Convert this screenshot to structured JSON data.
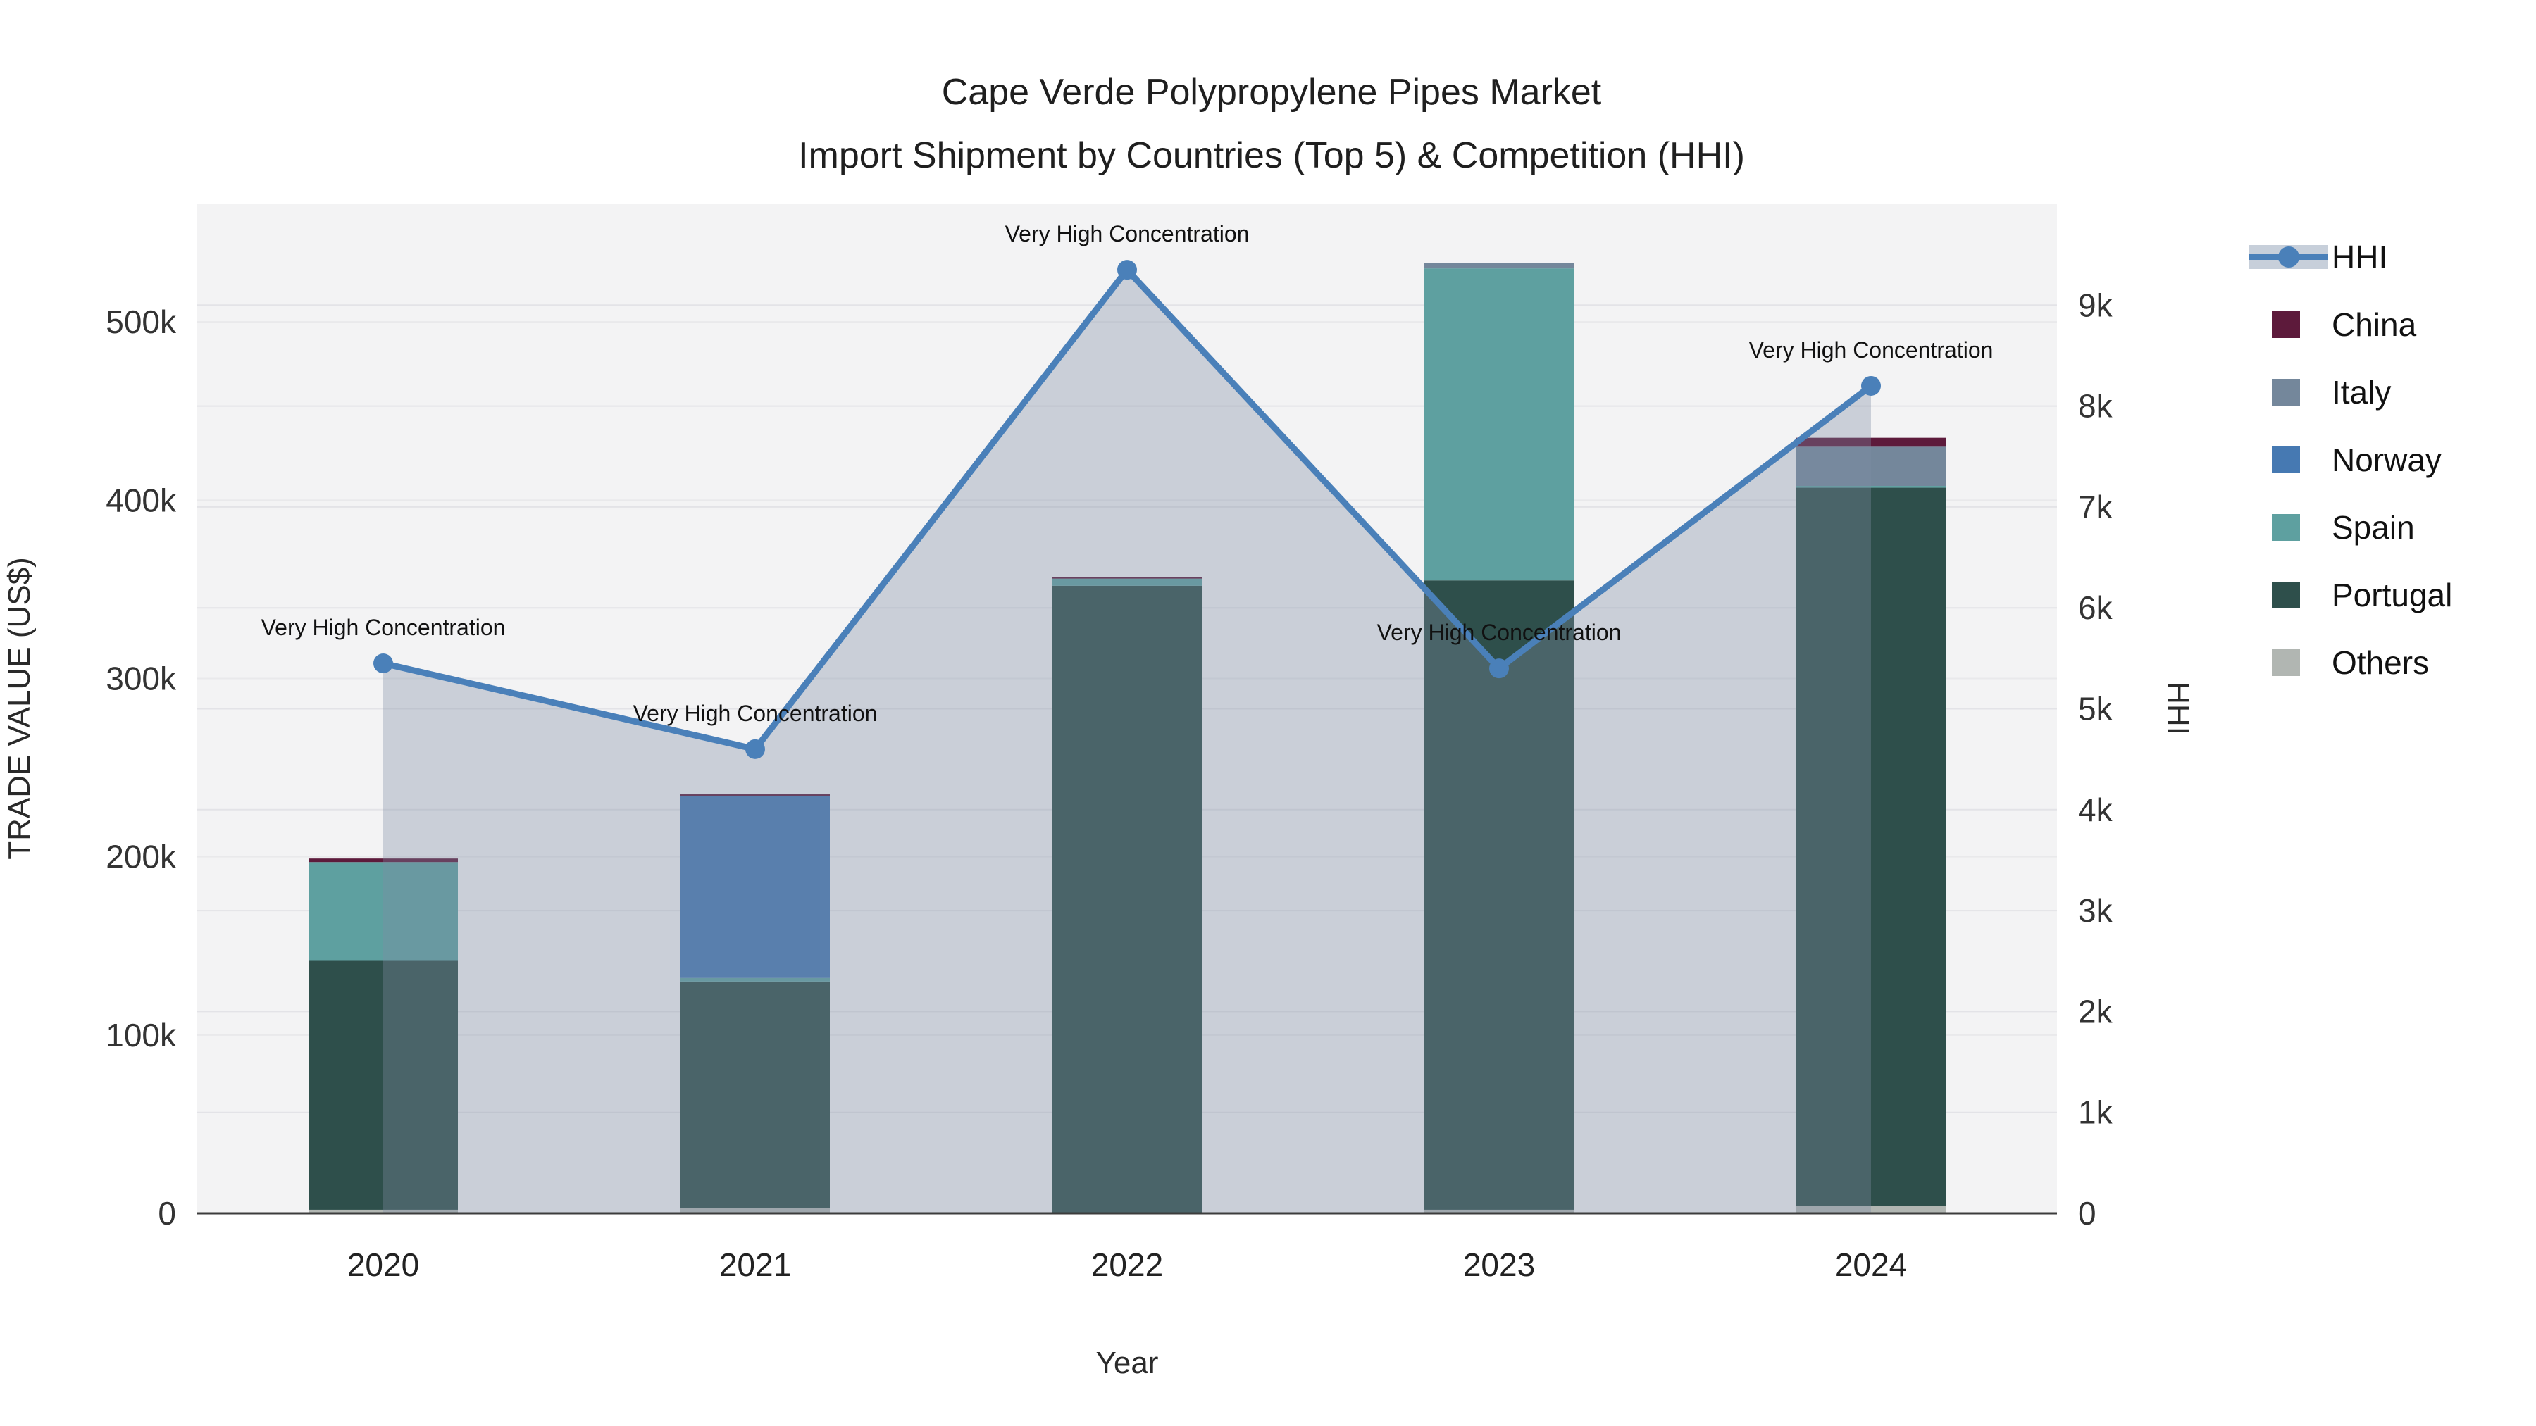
{
  "title": {
    "line1": "Cape Verde Polypropylene Pipes Market",
    "line2": "Import Shipment by Countries (Top 5) & Competition (HHI)"
  },
  "chart_data": {
    "type": "bar",
    "subtype": "stacked bars (left axis) + line with area fill (right axis)",
    "categories": [
      "2020",
      "2021",
      "2022",
      "2023",
      "2024"
    ],
    "xlabel": "Year",
    "ylabel_left": "TRADE VALUE (US$)",
    "ylabel_right": "HHI",
    "ylim_left": [
      0,
      566000
    ],
    "ylim_right": [
      0,
      10000
    ],
    "yticks_left": {
      "values": [
        0,
        100000,
        200000,
        300000,
        400000,
        500000
      ],
      "labels": [
        "0",
        "100k",
        "200k",
        "300k",
        "400k",
        "500k"
      ]
    },
    "yticks_right": {
      "values": [
        0,
        1000,
        2000,
        3000,
        4000,
        5000,
        6000,
        7000,
        8000,
        9000
      ],
      "labels": [
        "0",
        "1k",
        "2k",
        "3k",
        "4k",
        "5k",
        "6k",
        "7k",
        "8k",
        "9k"
      ]
    },
    "bar_series": [
      {
        "name": "Others",
        "color": "#B1B6B2",
        "values": [
          2000,
          3000,
          0,
          2000,
          4000
        ]
      },
      {
        "name": "Portugal",
        "color": "#2E4F4B",
        "values": [
          140000,
          127000,
          352000,
          353000,
          403000
        ]
      },
      {
        "name": "Spain",
        "color": "#5EA0A0",
        "values": [
          55000,
          2000,
          4000,
          175000,
          1000
        ]
      },
      {
        "name": "Norway",
        "color": "#4679B2",
        "values": [
          0,
          102000,
          0,
          0,
          0
        ]
      },
      {
        "name": "Italy",
        "color": "#74879B",
        "values": [
          0,
          0,
          0,
          3000,
          22000
        ]
      },
      {
        "name": "China",
        "color": "#5D1A3B",
        "values": [
          2000,
          1000,
          1000,
          0,
          5000
        ]
      }
    ],
    "bar_totals": [
      199000,
      235000,
      357000,
      533000,
      435000
    ],
    "line_series": {
      "name": "HHI",
      "color": "#4A80B9",
      "area_fill": "rgba(125,140,162,0.35)",
      "values": [
        5450,
        4600,
        9350,
        5400,
        8200
      ]
    },
    "annotations": [
      "Very High Concentration",
      "Very High Concentration",
      "Very High Concentration",
      "Very High Concentration",
      "Very High Concentration"
    ],
    "legend": {
      "position": "right",
      "order": [
        "HHI",
        "China",
        "Italy",
        "Norway",
        "Spain",
        "Portugal",
        "Others"
      ],
      "hhi_sample_band_color": "#C7CFDA"
    },
    "grid": true
  },
  "colors": {
    "figure_bg": "#FFFFFF",
    "plot_bg": "#F3F3F4",
    "grid_left": "#E9E9EB",
    "grid_right": "#E3E3E7",
    "axis_line": "#3C3C3C"
  }
}
